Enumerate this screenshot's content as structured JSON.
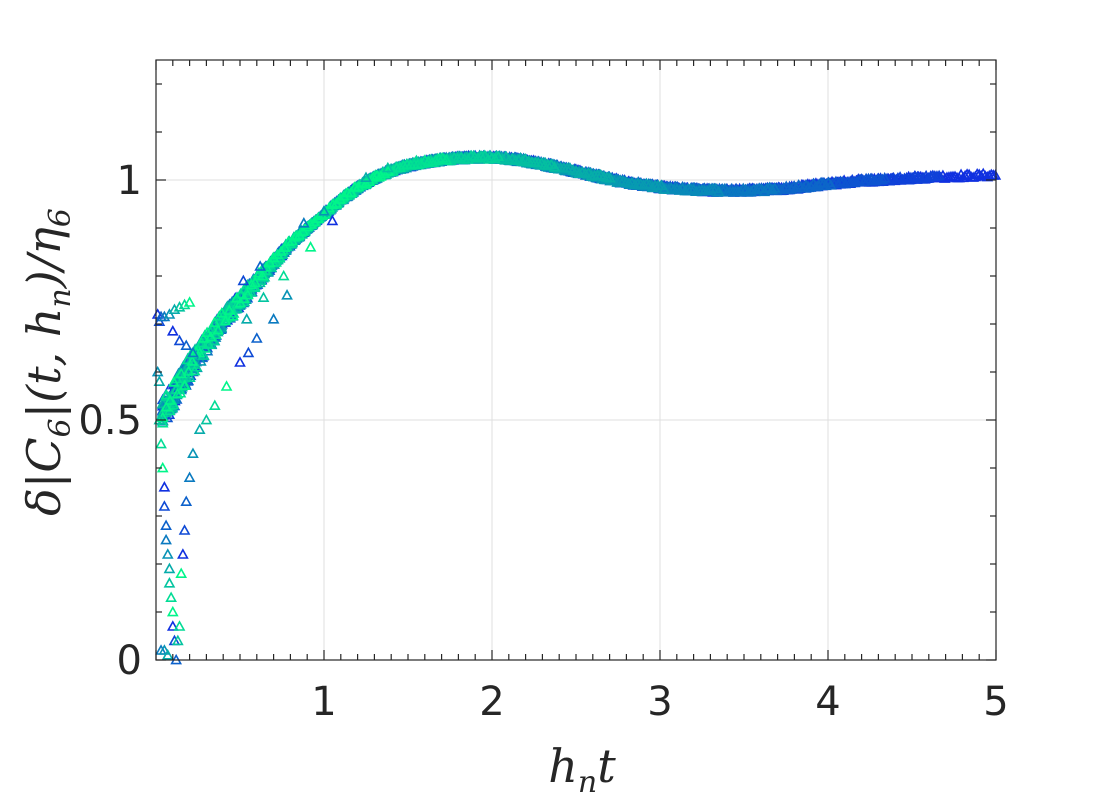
{
  "chart_data": {
    "type": "scatter",
    "title": "",
    "xlabel": {
      "main": "h",
      "sub": "n",
      "tail": "t"
    },
    "ylabel": {
      "pre": "δ|C",
      "sub1": "6",
      "mid": "|(t, h",
      "sub2": "n",
      "post": ")/η",
      "sub3": "6"
    },
    "xlim": [
      0,
      5
    ],
    "ylim": [
      0,
      1.25
    ],
    "x_ticks": [
      1,
      2,
      3,
      4,
      5
    ],
    "x_tick_labels": [
      "1",
      "2",
      "3",
      "4",
      "5"
    ],
    "y_ticks": [
      0,
      0.5,
      1
    ],
    "y_tick_labels": [
      "0",
      "0.5",
      "1"
    ],
    "grid": true,
    "marker": "triangle-open",
    "colors": {
      "start": "#1030e0",
      "end": "#00f58a",
      "axis": "#262626",
      "grid": "#dfdfdf"
    },
    "curve": [
      [
        0.05,
        0.52
      ],
      [
        0.1,
        0.55
      ],
      [
        0.15,
        0.58
      ],
      [
        0.2,
        0.61
      ],
      [
        0.3,
        0.66
      ],
      [
        0.4,
        0.71
      ],
      [
        0.5,
        0.75
      ],
      [
        0.6,
        0.79
      ],
      [
        0.7,
        0.83
      ],
      [
        0.8,
        0.87
      ],
      [
        0.9,
        0.9
      ],
      [
        1.0,
        0.93
      ],
      [
        1.1,
        0.96
      ],
      [
        1.2,
        0.985
      ],
      [
        1.3,
        1.005
      ],
      [
        1.4,
        1.02
      ],
      [
        1.5,
        1.03
      ],
      [
        1.6,
        1.037
      ],
      [
        1.7,
        1.042
      ],
      [
        1.8,
        1.045
      ],
      [
        1.9,
        1.047
      ],
      [
        2.0,
        1.047
      ],
      [
        2.1,
        1.044
      ],
      [
        2.2,
        1.04
      ],
      [
        2.3,
        1.033
      ],
      [
        2.4,
        1.026
      ],
      [
        2.5,
        1.018
      ],
      [
        2.6,
        1.01
      ],
      [
        2.7,
        1.002
      ],
      [
        2.8,
        0.995
      ],
      [
        2.9,
        0.99
      ],
      [
        3.0,
        0.985
      ],
      [
        3.1,
        0.982
      ],
      [
        3.2,
        0.98
      ],
      [
        3.3,
        0.978
      ],
      [
        3.4,
        0.978
      ],
      [
        3.5,
        0.978
      ],
      [
        3.6,
        0.979
      ],
      [
        3.7,
        0.981
      ],
      [
        3.8,
        0.984
      ],
      [
        3.9,
        0.988
      ],
      [
        4.0,
        0.992
      ],
      [
        4.1,
        0.995
      ],
      [
        4.2,
        0.998
      ],
      [
        4.3,
        1.0
      ],
      [
        4.4,
        1.002
      ],
      [
        4.5,
        1.004
      ],
      [
        4.6,
        1.006
      ],
      [
        4.7,
        1.007
      ],
      [
        4.8,
        1.008
      ],
      [
        4.9,
        1.009
      ],
      [
        5.0,
        1.01
      ]
    ],
    "series_count": 12,
    "outliers": [
      [
        0.01,
        0.72
      ],
      [
        0.02,
        0.705
      ],
      [
        0.03,
        0.715
      ],
      [
        0.05,
        0.715
      ],
      [
        0.08,
        0.72
      ],
      [
        0.11,
        0.73
      ],
      [
        0.14,
        0.735
      ],
      [
        0.17,
        0.74
      ],
      [
        0.2,
        0.745
      ],
      [
        0.1,
        0.685
      ],
      [
        0.14,
        0.665
      ],
      [
        0.18,
        0.655
      ],
      [
        0.22,
        0.64
      ],
      [
        0.01,
        0.6
      ],
      [
        0.02,
        0.58
      ],
      [
        0.02,
        0.5
      ],
      [
        0.03,
        0.45
      ],
      [
        0.04,
        0.4
      ],
      [
        0.05,
        0.36
      ],
      [
        0.05,
        0.32
      ],
      [
        0.06,
        0.28
      ],
      [
        0.06,
        0.25
      ],
      [
        0.07,
        0.22
      ],
      [
        0.08,
        0.19
      ],
      [
        0.08,
        0.16
      ],
      [
        0.09,
        0.13
      ],
      [
        0.1,
        0.1
      ],
      [
        0.1,
        0.07
      ],
      [
        0.11,
        0.04
      ],
      [
        0.12,
        0.0
      ],
      [
        0.03,
        0.02
      ],
      [
        0.05,
        0.02
      ],
      [
        0.07,
        0.01
      ],
      [
        0.13,
        0.04
      ],
      [
        0.14,
        0.07
      ],
      [
        0.15,
        0.18
      ],
      [
        0.16,
        0.22
      ],
      [
        0.17,
        0.27
      ],
      [
        0.18,
        0.33
      ],
      [
        0.2,
        0.38
      ],
      [
        0.22,
        0.43
      ],
      [
        0.26,
        0.48
      ],
      [
        0.3,
        0.5
      ],
      [
        0.35,
        0.53
      ],
      [
        0.42,
        0.57
      ],
      [
        0.5,
        0.62
      ],
      [
        0.55,
        0.64
      ],
      [
        0.6,
        0.67
      ],
      [
        0.7,
        0.71
      ],
      [
        0.78,
        0.76
      ],
      [
        0.54,
        0.71
      ],
      [
        0.64,
        0.755
      ],
      [
        0.76,
        0.8
      ],
      [
        0.92,
        0.86
      ],
      [
        1.05,
        0.915
      ],
      [
        0.52,
        0.79
      ],
      [
        0.62,
        0.82
      ],
      [
        0.88,
        0.91
      ],
      [
        1.0,
        0.935
      ],
      [
        1.25,
        1.005
      ],
      [
        1.38,
        1.025
      ],
      [
        1.55,
        1.04
      ]
    ]
  }
}
